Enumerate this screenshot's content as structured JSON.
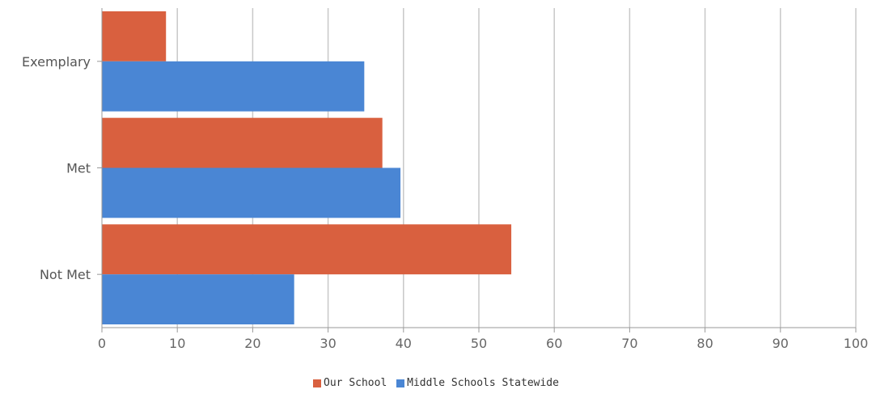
{
  "chart_data": {
    "type": "bar",
    "orientation": "horizontal",
    "categories": [
      "Exemplary",
      "Met",
      "Not Met"
    ],
    "series": [
      {
        "name": "Our School",
        "values": [
          8.5,
          37.2,
          54.3
        ],
        "color": "#d9603f"
      },
      {
        "name": "Middle Schools Statewide",
        "values": [
          34.8,
          39.6,
          25.5
        ],
        "color": "#4a86d4"
      }
    ],
    "xlim": [
      0,
      100
    ],
    "xticks": [
      0,
      10,
      20,
      30,
      40,
      50,
      60,
      70,
      80,
      90,
      100
    ],
    "grid": true,
    "legend_position": "bottom-center",
    "title": "",
    "xlabel": "",
    "ylabel": ""
  }
}
